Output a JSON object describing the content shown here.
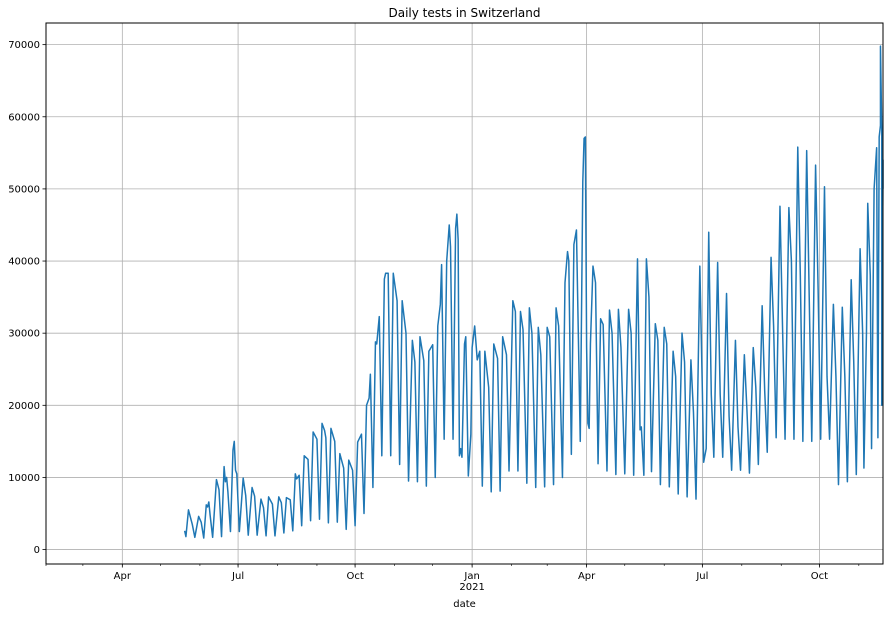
{
  "chart_data": {
    "type": "line",
    "title": "Daily tests in Switzerland",
    "xlabel": "date",
    "ylabel": "",
    "grid": true,
    "legend": "none",
    "line_color": "#1f77b4",
    "xlim": [
      "2020-02-01",
      "2021-11-20"
    ],
    "ylim": [
      -2000,
      73000
    ],
    "yticks": [
      0,
      10000,
      20000,
      30000,
      40000,
      50000,
      60000,
      70000
    ],
    "xticks": [
      {
        "date": "2020-04-01",
        "label": "Apr"
      },
      {
        "date": "2020-07-01",
        "label": "Jul"
      },
      {
        "date": "2020-10-01",
        "label": "Oct"
      },
      {
        "date": "2021-01-01",
        "label": "Jan",
        "sublabel": "2021"
      },
      {
        "date": "2021-04-01",
        "label": "Apr"
      },
      {
        "date": "2021-07-01",
        "label": "Jul"
      },
      {
        "date": "2021-10-01",
        "label": "Oct"
      }
    ],
    "series": [
      {
        "values": [
          [
            "2020-05-20",
            2600
          ],
          [
            "2020-05-21",
            1800
          ],
          [
            "2020-05-23",
            5500
          ],
          [
            "2020-05-26",
            3500
          ],
          [
            "2020-05-28",
            1700
          ],
          [
            "2020-05-31",
            4600
          ],
          [
            "2020-06-02",
            3800
          ],
          [
            "2020-06-04",
            1600
          ],
          [
            "2020-06-06",
            6200
          ],
          [
            "2020-06-07",
            5900
          ],
          [
            "2020-06-08",
            6600
          ],
          [
            "2020-06-09",
            4800
          ],
          [
            "2020-06-11",
            1700
          ],
          [
            "2020-06-14",
            9700
          ],
          [
            "2020-06-16",
            8300
          ],
          [
            "2020-06-18",
            1800
          ],
          [
            "2020-06-20",
            11500
          ],
          [
            "2020-06-21",
            9400
          ],
          [
            "2020-06-22",
            10000
          ],
          [
            "2020-06-23",
            8000
          ],
          [
            "2020-06-25",
            2500
          ],
          [
            "2020-06-27",
            13800
          ],
          [
            "2020-06-28",
            15000
          ],
          [
            "2020-06-29",
            11000
          ],
          [
            "2020-06-30",
            10500
          ],
          [
            "2020-07-02",
            2500
          ],
          [
            "2020-07-05",
            9900
          ],
          [
            "2020-07-07",
            7500
          ],
          [
            "2020-07-09",
            2000
          ],
          [
            "2020-07-12",
            8600
          ],
          [
            "2020-07-14",
            7400
          ],
          [
            "2020-07-16",
            2000
          ],
          [
            "2020-07-19",
            7000
          ],
          [
            "2020-07-21",
            5800
          ],
          [
            "2020-07-23",
            1900
          ],
          [
            "2020-07-25",
            7300
          ],
          [
            "2020-07-28",
            6300
          ],
          [
            "2020-07-30",
            1900
          ],
          [
            "2020-08-02",
            7300
          ],
          [
            "2020-08-04",
            6500
          ],
          [
            "2020-08-06",
            2300
          ],
          [
            "2020-08-08",
            7200
          ],
          [
            "2020-08-11",
            6900
          ],
          [
            "2020-08-13",
            2600
          ],
          [
            "2020-08-15",
            10500
          ],
          [
            "2020-08-16",
            9800
          ],
          [
            "2020-08-18",
            10300
          ],
          [
            "2020-08-20",
            3300
          ],
          [
            "2020-08-22",
            13000
          ],
          [
            "2020-08-25",
            12500
          ],
          [
            "2020-08-27",
            4000
          ],
          [
            "2020-08-29",
            16300
          ],
          [
            "2020-09-01",
            15300
          ],
          [
            "2020-09-03",
            4200
          ],
          [
            "2020-09-05",
            17500
          ],
          [
            "2020-09-07",
            16500
          ],
          [
            "2020-09-08",
            15500
          ],
          [
            "2020-09-10",
            3700
          ],
          [
            "2020-09-12",
            16800
          ],
          [
            "2020-09-15",
            15000
          ],
          [
            "2020-09-17",
            3800
          ],
          [
            "2020-09-19",
            13300
          ],
          [
            "2020-09-22",
            11300
          ],
          [
            "2020-09-24",
            2800
          ],
          [
            "2020-09-26",
            12400
          ],
          [
            "2020-09-29",
            11000
          ],
          [
            "2020-10-01",
            3300
          ],
          [
            "2020-10-03",
            14900
          ],
          [
            "2020-10-06",
            16000
          ],
          [
            "2020-10-08",
            5000
          ],
          [
            "2020-10-10",
            20000
          ],
          [
            "2020-10-12",
            21000
          ],
          [
            "2020-10-13",
            24300
          ],
          [
            "2020-10-15",
            8600
          ],
          [
            "2020-10-17",
            28800
          ],
          [
            "2020-10-18",
            28500
          ],
          [
            "2020-10-20",
            32300
          ],
          [
            "2020-10-22",
            13000
          ],
          [
            "2020-10-24",
            37500
          ],
          [
            "2020-10-25",
            38300
          ],
          [
            "2020-10-27",
            38300
          ],
          [
            "2020-10-29",
            13000
          ],
          [
            "2020-10-31",
            38300
          ],
          [
            "2020-11-03",
            34500
          ],
          [
            "2020-11-05",
            11800
          ],
          [
            "2020-11-07",
            34500
          ],
          [
            "2020-11-10",
            30000
          ],
          [
            "2020-11-12",
            9500
          ],
          [
            "2020-11-15",
            29000
          ],
          [
            "2020-11-17",
            26000
          ],
          [
            "2020-11-19",
            9400
          ],
          [
            "2020-11-21",
            29500
          ],
          [
            "2020-11-24",
            26200
          ],
          [
            "2020-11-26",
            8800
          ],
          [
            "2020-11-28",
            27500
          ],
          [
            "2020-12-01",
            28400
          ],
          [
            "2020-12-03",
            10000
          ],
          [
            "2020-12-05",
            31000
          ],
          [
            "2020-12-07",
            34000
          ],
          [
            "2020-12-08",
            39500
          ],
          [
            "2020-12-10",
            15300
          ],
          [
            "2020-12-12",
            40000
          ],
          [
            "2020-12-14",
            45000
          ],
          [
            "2020-12-15",
            42000
          ],
          [
            "2020-12-17",
            15300
          ],
          [
            "2020-12-19",
            44500
          ],
          [
            "2020-12-20",
            46500
          ],
          [
            "2020-12-21",
            43000
          ],
          [
            "2020-12-22",
            13000
          ],
          [
            "2020-12-23",
            14000
          ],
          [
            "2020-12-24",
            12800
          ],
          [
            "2020-12-26",
            28500
          ],
          [
            "2020-12-27",
            29500
          ],
          [
            "2020-12-29",
            10200
          ],
          [
            "2020-12-31",
            16000
          ],
          [
            "2021-01-01",
            28000
          ],
          [
            "2021-01-03",
            31000
          ],
          [
            "2021-01-05",
            26300
          ],
          [
            "2021-01-07",
            27500
          ],
          [
            "2021-01-09",
            8800
          ],
          [
            "2021-01-11",
            27500
          ],
          [
            "2021-01-14",
            22500
          ],
          [
            "2021-01-16",
            8000
          ],
          [
            "2021-01-18",
            28500
          ],
          [
            "2021-01-21",
            26500
          ],
          [
            "2021-01-23",
            8100
          ],
          [
            "2021-01-25",
            29500
          ],
          [
            "2021-01-28",
            27000
          ],
          [
            "2021-01-30",
            10900
          ],
          [
            "2021-02-02",
            34500
          ],
          [
            "2021-02-04",
            33000
          ],
          [
            "2021-02-06",
            10900
          ],
          [
            "2021-02-08",
            33000
          ],
          [
            "2021-02-10",
            30500
          ],
          [
            "2021-02-13",
            9200
          ],
          [
            "2021-02-15",
            33500
          ],
          [
            "2021-02-17",
            30000
          ],
          [
            "2021-02-20",
            8600
          ],
          [
            "2021-02-22",
            30800
          ],
          [
            "2021-02-24",
            27000
          ],
          [
            "2021-02-27",
            8700
          ],
          [
            "2021-03-01",
            30800
          ],
          [
            "2021-03-03",
            29500
          ],
          [
            "2021-03-06",
            9000
          ],
          [
            "2021-03-08",
            33500
          ],
          [
            "2021-03-10",
            31000
          ],
          [
            "2021-03-13",
            10000
          ],
          [
            "2021-03-15",
            37000
          ],
          [
            "2021-03-17",
            41300
          ],
          [
            "2021-03-18",
            40000
          ],
          [
            "2021-03-20",
            13200
          ],
          [
            "2021-03-22",
            42300
          ],
          [
            "2021-03-24",
            44300
          ],
          [
            "2021-03-27",
            15000
          ],
          [
            "2021-03-29",
            51000
          ],
          [
            "2021-03-30",
            57000
          ],
          [
            "2021-03-31",
            57200
          ],
          [
            "2021-04-01",
            28000
          ],
          [
            "2021-04-02",
            17500
          ],
          [
            "2021-04-03",
            16800
          ],
          [
            "2021-04-04",
            28500
          ],
          [
            "2021-04-06",
            39300
          ],
          [
            "2021-04-08",
            37000
          ],
          [
            "2021-04-10",
            11900
          ],
          [
            "2021-04-12",
            32000
          ],
          [
            "2021-04-14",
            31200
          ],
          [
            "2021-04-17",
            10900
          ],
          [
            "2021-04-19",
            33200
          ],
          [
            "2021-04-21",
            30000
          ],
          [
            "2021-04-24",
            10400
          ],
          [
            "2021-04-26",
            33300
          ],
          [
            "2021-04-28",
            28000
          ],
          [
            "2021-05-01",
            10500
          ],
          [
            "2021-05-04",
            33300
          ],
          [
            "2021-05-06",
            30000
          ],
          [
            "2021-05-08",
            10300
          ],
          [
            "2021-05-11",
            40300
          ],
          [
            "2021-05-13",
            16600
          ],
          [
            "2021-05-14",
            17000
          ],
          [
            "2021-05-16",
            10300
          ],
          [
            "2021-05-18",
            40300
          ],
          [
            "2021-05-20",
            35000
          ],
          [
            "2021-05-22",
            10800
          ],
          [
            "2021-05-25",
            31300
          ],
          [
            "2021-05-27",
            29000
          ],
          [
            "2021-05-29",
            9000
          ],
          [
            "2021-06-01",
            30800
          ],
          [
            "2021-06-03",
            28500
          ],
          [
            "2021-06-05",
            8700
          ],
          [
            "2021-06-08",
            27500
          ],
          [
            "2021-06-10",
            24000
          ],
          [
            "2021-06-12",
            7700
          ],
          [
            "2021-06-15",
            30000
          ],
          [
            "2021-06-17",
            26000
          ],
          [
            "2021-06-19",
            7300
          ],
          [
            "2021-06-22",
            26300
          ],
          [
            "2021-06-24",
            19000
          ],
          [
            "2021-06-26",
            7000
          ],
          [
            "2021-06-29",
            39300
          ],
          [
            "2021-07-01",
            22000
          ],
          [
            "2021-07-02",
            12100
          ],
          [
            "2021-07-04",
            14000
          ],
          [
            "2021-07-06",
            44000
          ],
          [
            "2021-07-08",
            21500
          ],
          [
            "2021-07-10",
            12800
          ],
          [
            "2021-07-13",
            39800
          ],
          [
            "2021-07-15",
            21500
          ],
          [
            "2021-07-17",
            12800
          ],
          [
            "2021-07-20",
            35500
          ],
          [
            "2021-07-22",
            18500
          ],
          [
            "2021-07-24",
            11000
          ],
          [
            "2021-07-27",
            29000
          ],
          [
            "2021-07-29",
            17000
          ],
          [
            "2021-07-31",
            11000
          ],
          [
            "2021-08-03",
            27000
          ],
          [
            "2021-08-05",
            19500
          ],
          [
            "2021-08-07",
            10600
          ],
          [
            "2021-08-10",
            28000
          ],
          [
            "2021-08-12",
            22500
          ],
          [
            "2021-08-14",
            11800
          ],
          [
            "2021-08-17",
            33800
          ],
          [
            "2021-08-19",
            22000
          ],
          [
            "2021-08-21",
            13500
          ],
          [
            "2021-08-24",
            40500
          ],
          [
            "2021-08-26",
            31000
          ],
          [
            "2021-08-28",
            15500
          ],
          [
            "2021-08-31",
            47600
          ],
          [
            "2021-09-02",
            31000
          ],
          [
            "2021-09-04",
            15300
          ],
          [
            "2021-09-07",
            47400
          ],
          [
            "2021-09-09",
            40000
          ],
          [
            "2021-09-11",
            15300
          ],
          [
            "2021-09-14",
            55800
          ],
          [
            "2021-09-16",
            38000
          ],
          [
            "2021-09-18",
            15000
          ],
          [
            "2021-09-21",
            55300
          ],
          [
            "2021-09-23",
            35000
          ],
          [
            "2021-09-25",
            15000
          ],
          [
            "2021-09-28",
            53300
          ],
          [
            "2021-09-30",
            36000
          ],
          [
            "2021-10-02",
            15300
          ],
          [
            "2021-10-05",
            50300
          ],
          [
            "2021-10-07",
            24000
          ],
          [
            "2021-10-09",
            15300
          ],
          [
            "2021-10-12",
            34000
          ],
          [
            "2021-10-14",
            24000
          ],
          [
            "2021-10-16",
            9000
          ],
          [
            "2021-10-19",
            33600
          ],
          [
            "2021-10-21",
            24000
          ],
          [
            "2021-10-23",
            9400
          ],
          [
            "2021-10-26",
            37400
          ],
          [
            "2021-10-28",
            26000
          ],
          [
            "2021-10-30",
            10400
          ],
          [
            "2021-11-02",
            41700
          ],
          [
            "2021-11-04",
            30000
          ],
          [
            "2021-11-05",
            11300
          ],
          [
            "2021-11-07",
            30000
          ],
          [
            "2021-11-08",
            48000
          ],
          [
            "2021-11-10",
            38000
          ],
          [
            "2021-11-11",
            14000
          ],
          [
            "2021-11-13",
            50000
          ],
          [
            "2021-11-15",
            55700
          ],
          [
            "2021-11-16",
            15500
          ],
          [
            "2021-11-17",
            57200
          ],
          [
            "2021-11-18",
            58800
          ],
          [
            "2021-11-18",
            69800
          ],
          [
            "2021-11-19",
            58500
          ],
          [
            "2021-11-19",
            20000
          ],
          [
            "2021-11-20",
            54000
          ],
          [
            "2021-11-20",
            50000
          ]
        ]
      }
    ]
  }
}
